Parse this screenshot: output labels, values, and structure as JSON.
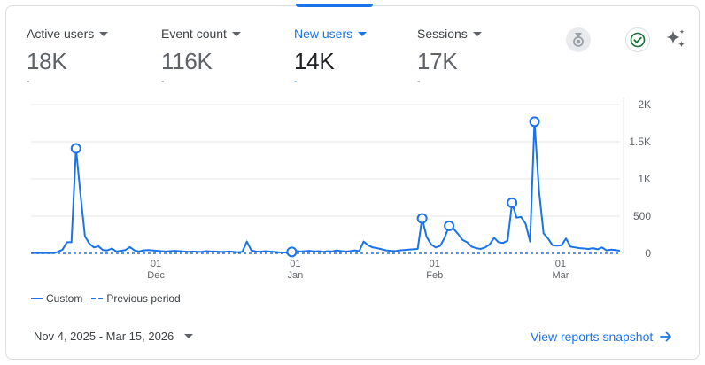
{
  "metrics": [
    {
      "label": "Active users",
      "value": "18K",
      "delta": "-",
      "selected": false
    },
    {
      "label": "Event count",
      "value": "116K",
      "delta": "-",
      "selected": false
    },
    {
      "label": "New users",
      "value": "14K",
      "delta": "-",
      "selected": true
    },
    {
      "label": "Sessions",
      "value": "17K",
      "delta": "-",
      "selected": false
    }
  ],
  "icons": {
    "medal": "medal-icon",
    "check": "check-circle-icon",
    "sparkle": "sparkle-icon",
    "arrow": "arrow-right-icon"
  },
  "colors": {
    "accent": "#1a73e8",
    "grid": "#e6e6e6",
    "check": "#137333"
  },
  "legend": {
    "current": "Custom",
    "previous": "Previous period"
  },
  "footer": {
    "date_range": "Nov 4, 2025 - Mar 15, 2026",
    "view_link": "View reports snapshot"
  },
  "chart_data": {
    "type": "line",
    "x_start": "2025-11-04",
    "x_end": "2026-03-15",
    "ylim": [
      0,
      2000
    ],
    "y_ticks": [
      {
        "value": 0,
        "label": "0"
      },
      {
        "value": 500,
        "label": "500"
      },
      {
        "value": 1000,
        "label": "1K"
      },
      {
        "value": 1500,
        "label": "1.5K"
      },
      {
        "value": 2000,
        "label": "2K"
      }
    ],
    "x_ticks": [
      {
        "date": "2025-12-01",
        "day": "01",
        "month": "Dec"
      },
      {
        "date": "2026-01-01",
        "day": "01",
        "month": "Jan"
      },
      {
        "date": "2026-02-01",
        "day": "01",
        "month": "Feb"
      },
      {
        "date": "2026-03-01",
        "day": "01",
        "month": "Mar"
      }
    ],
    "grid": true,
    "legend_position": "bottom-left",
    "series": [
      {
        "name": "Custom",
        "style": "solid",
        "color": "#1a73e8",
        "points": [
          [
            "2025-11-04",
            5
          ],
          [
            "2025-11-05",
            5
          ],
          [
            "2025-11-06",
            5
          ],
          [
            "2025-11-07",
            5
          ],
          [
            "2025-11-08",
            5
          ],
          [
            "2025-11-09",
            5
          ],
          [
            "2025-11-10",
            20
          ],
          [
            "2025-11-11",
            50
          ],
          [
            "2025-11-12",
            150
          ],
          [
            "2025-11-13",
            150
          ],
          [
            "2025-11-14",
            1410
          ],
          [
            "2025-11-15",
            800
          ],
          [
            "2025-11-16",
            230
          ],
          [
            "2025-11-17",
            130
          ],
          [
            "2025-11-18",
            80
          ],
          [
            "2025-11-19",
            95
          ],
          [
            "2025-11-20",
            45
          ],
          [
            "2025-11-21",
            40
          ],
          [
            "2025-11-22",
            65
          ],
          [
            "2025-11-23",
            25
          ],
          [
            "2025-11-24",
            35
          ],
          [
            "2025-11-25",
            45
          ],
          [
            "2025-11-26",
            85
          ],
          [
            "2025-11-27",
            40
          ],
          [
            "2025-11-28",
            25
          ],
          [
            "2025-11-29",
            40
          ],
          [
            "2025-11-30",
            45
          ],
          [
            "2025-12-01",
            40
          ],
          [
            "2025-12-02",
            35
          ],
          [
            "2025-12-03",
            30
          ],
          [
            "2025-12-04",
            25
          ],
          [
            "2025-12-05",
            30
          ],
          [
            "2025-12-06",
            35
          ],
          [
            "2025-12-07",
            30
          ],
          [
            "2025-12-08",
            25
          ],
          [
            "2025-12-09",
            20
          ],
          [
            "2025-12-10",
            25
          ],
          [
            "2025-12-11",
            20
          ],
          [
            "2025-12-12",
            20
          ],
          [
            "2025-12-13",
            30
          ],
          [
            "2025-12-14",
            25
          ],
          [
            "2025-12-15",
            25
          ],
          [
            "2025-12-16",
            20
          ],
          [
            "2025-12-17",
            20
          ],
          [
            "2025-12-18",
            25
          ],
          [
            "2025-12-19",
            20
          ],
          [
            "2025-12-20",
            15
          ],
          [
            "2025-12-21",
            20
          ],
          [
            "2025-12-22",
            160
          ],
          [
            "2025-12-23",
            40
          ],
          [
            "2025-12-24",
            25
          ],
          [
            "2025-12-25",
            20
          ],
          [
            "2025-12-26",
            30
          ],
          [
            "2025-12-27",
            25
          ],
          [
            "2025-12-28",
            20
          ],
          [
            "2025-12-29",
            15
          ],
          [
            "2025-12-30",
            10
          ],
          [
            "2026-01-01",
            20
          ],
          [
            "2026-01-02",
            30
          ],
          [
            "2026-01-03",
            25
          ],
          [
            "2026-01-04",
            30
          ],
          [
            "2026-01-05",
            35
          ],
          [
            "2026-01-06",
            25
          ],
          [
            "2026-01-07",
            30
          ],
          [
            "2026-01-08",
            20
          ],
          [
            "2026-01-09",
            30
          ],
          [
            "2026-01-10",
            25
          ],
          [
            "2026-01-11",
            40
          ],
          [
            "2026-01-12",
            30
          ],
          [
            "2026-01-13",
            25
          ],
          [
            "2026-01-14",
            30
          ],
          [
            "2026-01-15",
            40
          ],
          [
            "2026-01-16",
            30
          ],
          [
            "2026-01-17",
            160
          ],
          [
            "2026-01-18",
            110
          ],
          [
            "2026-01-19",
            80
          ],
          [
            "2026-01-20",
            70
          ],
          [
            "2026-01-21",
            55
          ],
          [
            "2026-01-22",
            40
          ],
          [
            "2026-01-23",
            35
          ],
          [
            "2026-01-24",
            30
          ],
          [
            "2026-01-25",
            40
          ],
          [
            "2026-01-26",
            45
          ],
          [
            "2026-01-27",
            50
          ],
          [
            "2026-01-28",
            55
          ],
          [
            "2026-01-29",
            60
          ],
          [
            "2026-01-30",
            470
          ],
          [
            "2026-01-31",
            220
          ],
          [
            "2026-02-01",
            120
          ],
          [
            "2026-02-02",
            80
          ],
          [
            "2026-02-03",
            100
          ],
          [
            "2026-02-04",
            210
          ],
          [
            "2026-02-05",
            370
          ],
          [
            "2026-02-06",
            330
          ],
          [
            "2026-02-07",
            260
          ],
          [
            "2026-02-08",
            180
          ],
          [
            "2026-02-09",
            150
          ],
          [
            "2026-02-10",
            90
          ],
          [
            "2026-02-11",
            70
          ],
          [
            "2026-02-12",
            60
          ],
          [
            "2026-02-13",
            80
          ],
          [
            "2026-02-14",
            120
          ],
          [
            "2026-02-15",
            210
          ],
          [
            "2026-02-16",
            150
          ],
          [
            "2026-02-17",
            140
          ],
          [
            "2026-02-18",
            170
          ],
          [
            "2026-02-19",
            680
          ],
          [
            "2026-02-20",
            480
          ],
          [
            "2026-02-21",
            490
          ],
          [
            "2026-02-22",
            400
          ],
          [
            "2026-02-23",
            160
          ],
          [
            "2026-02-24",
            1770
          ],
          [
            "2026-02-25",
            840
          ],
          [
            "2026-02-26",
            270
          ],
          [
            "2026-02-27",
            200
          ],
          [
            "2026-02-28",
            110
          ],
          [
            "2026-03-01",
            105
          ],
          [
            "2026-03-02",
            110
          ],
          [
            "2026-03-03",
            200
          ],
          [
            "2026-03-04",
            90
          ],
          [
            "2026-03-05",
            80
          ],
          [
            "2026-03-06",
            70
          ],
          [
            "2026-03-07",
            65
          ],
          [
            "2026-03-08",
            60
          ],
          [
            "2026-03-09",
            70
          ],
          [
            "2026-03-10",
            55
          ],
          [
            "2026-03-11",
            80
          ],
          [
            "2026-03-12",
            40
          ],
          [
            "2026-03-13",
            50
          ],
          [
            "2026-03-14",
            45
          ],
          [
            "2026-03-15",
            35
          ]
        ],
        "highlighted_points": [
          [
            "2025-11-14",
            1410
          ],
          [
            "2026-01-01",
            20
          ],
          [
            "2026-01-30",
            470
          ],
          [
            "2026-02-05",
            370
          ],
          [
            "2026-02-19",
            680
          ],
          [
            "2026-02-24",
            1770
          ]
        ]
      },
      {
        "name": "Previous period",
        "style": "dashed",
        "color": "#1a73e8",
        "points": [
          [
            "2025-11-04",
            0
          ],
          [
            "2026-03-15",
            0
          ]
        ]
      }
    ]
  }
}
